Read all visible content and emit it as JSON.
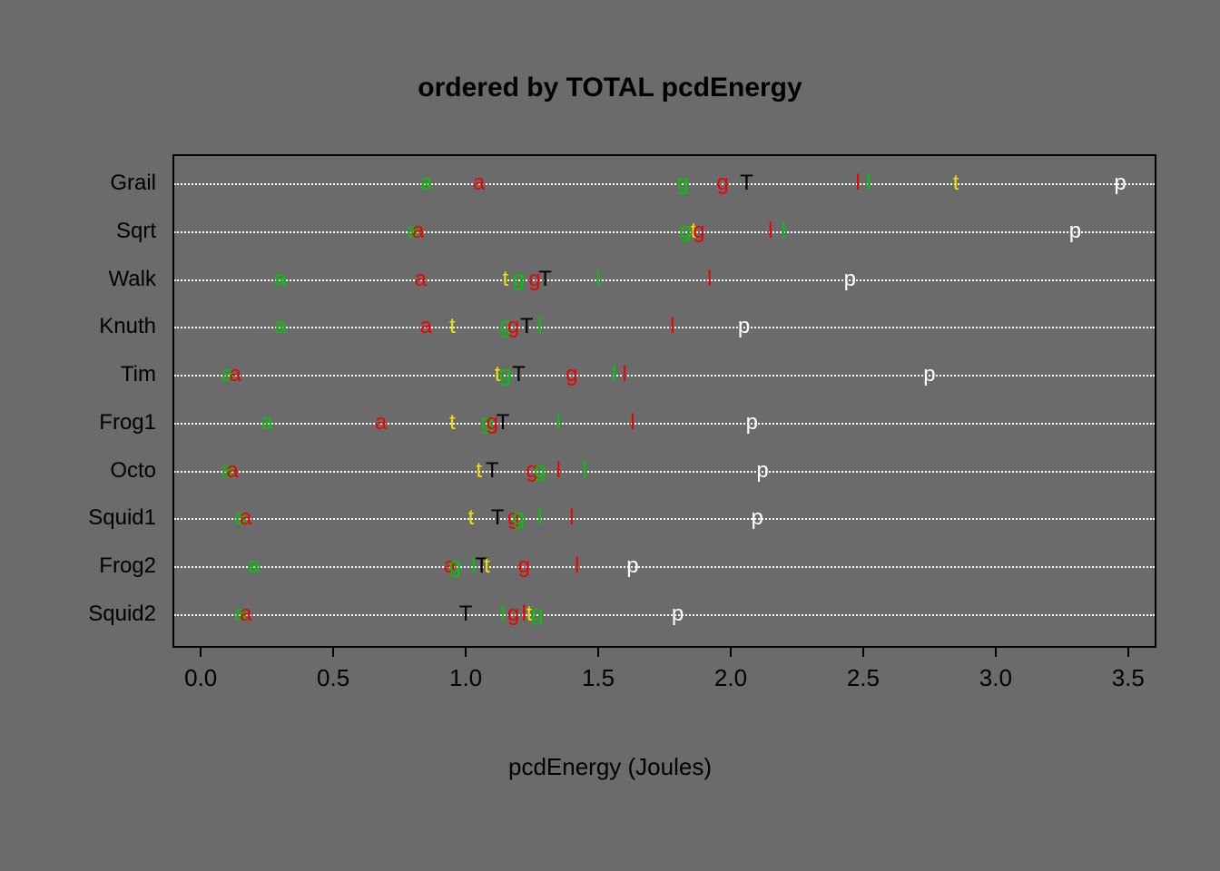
{
  "chart": {
    "type": "dotchart",
    "title": "ordered by TOTAL pcdEnergy",
    "title_fontsize": 30,
    "title_fontweight": "bold",
    "background_color": "#6b6b6b",
    "border_color": "#000000",
    "gridline_color": "#ffffff",
    "gridline_style": "dotted",
    "xlabel": "pcdEnergy (Joules)",
    "xlabel_fontsize": 26,
    "xlim": [
      -0.1,
      3.6
    ],
    "xticks": [
      0.0,
      0.5,
      1.0,
      1.5,
      2.0,
      2.5,
      3.0,
      3.5
    ],
    "xtick_fontsize": 26,
    "ylabel_fontsize": 24,
    "point_fontsize": 24,
    "categories": [
      "Grail",
      "Sqrt",
      "Walk",
      "Knuth",
      "Tim",
      "Frog1",
      "Octo",
      "Squid1",
      "Frog2",
      "Squid2"
    ],
    "colors": {
      "green": "#00c800",
      "red": "#f00000",
      "yellow": "#f0e000",
      "black": "#000000",
      "white": "#ffffff"
    },
    "points": {
      "Grail": [
        {
          "x": 0.85,
          "ch": "a",
          "color": "green"
        },
        {
          "x": 1.05,
          "ch": "a",
          "color": "red"
        },
        {
          "x": 1.82,
          "ch": "g",
          "color": "green"
        },
        {
          "x": 1.97,
          "ch": "g",
          "color": "red"
        },
        {
          "x": 2.06,
          "ch": "T",
          "color": "black"
        },
        {
          "x": 2.48,
          "ch": "l",
          "color": "red"
        },
        {
          "x": 2.52,
          "ch": "l",
          "color": "green"
        },
        {
          "x": 2.85,
          "ch": "t",
          "color": "yellow"
        },
        {
          "x": 3.47,
          "ch": "p",
          "color": "white"
        }
      ],
      "Sqrt": [
        {
          "x": 0.8,
          "ch": "a",
          "color": "green"
        },
        {
          "x": 0.82,
          "ch": "a",
          "color": "red"
        },
        {
          "x": 1.83,
          "ch": "g",
          "color": "green"
        },
        {
          "x": 1.86,
          "ch": "t",
          "color": "yellow"
        },
        {
          "x": 1.88,
          "ch": "g",
          "color": "red"
        },
        {
          "x": 2.15,
          "ch": "l",
          "color": "red"
        },
        {
          "x": 2.2,
          "ch": "l",
          "color": "green"
        },
        {
          "x": 3.3,
          "ch": "p",
          "color": "white"
        }
      ],
      "Walk": [
        {
          "x": 0.3,
          "ch": "a",
          "color": "green"
        },
        {
          "x": 0.83,
          "ch": "a",
          "color": "red"
        },
        {
          "x": 1.15,
          "ch": "t",
          "color": "yellow"
        },
        {
          "x": 1.2,
          "ch": "g",
          "color": "green"
        },
        {
          "x": 1.26,
          "ch": "g",
          "color": "red"
        },
        {
          "x": 1.3,
          "ch": "T",
          "color": "black"
        },
        {
          "x": 1.5,
          "ch": "l",
          "color": "green"
        },
        {
          "x": 1.92,
          "ch": "l",
          "color": "red"
        },
        {
          "x": 2.45,
          "ch": "p",
          "color": "white"
        }
      ],
      "Knuth": [
        {
          "x": 0.3,
          "ch": "a",
          "color": "green"
        },
        {
          "x": 0.85,
          "ch": "a",
          "color": "red"
        },
        {
          "x": 0.95,
          "ch": "t",
          "color": "yellow"
        },
        {
          "x": 1.15,
          "ch": "g",
          "color": "green"
        },
        {
          "x": 1.18,
          "ch": "g",
          "color": "red"
        },
        {
          "x": 1.23,
          "ch": "T",
          "color": "black"
        },
        {
          "x": 1.28,
          "ch": "l",
          "color": "green"
        },
        {
          "x": 1.78,
          "ch": "l",
          "color": "red"
        },
        {
          "x": 2.05,
          "ch": "p",
          "color": "white"
        }
      ],
      "Tim": [
        {
          "x": 0.1,
          "ch": "a",
          "color": "green"
        },
        {
          "x": 0.13,
          "ch": "a",
          "color": "red"
        },
        {
          "x": 1.12,
          "ch": "t",
          "color": "yellow"
        },
        {
          "x": 1.15,
          "ch": "g",
          "color": "green"
        },
        {
          "x": 1.2,
          "ch": "T",
          "color": "black"
        },
        {
          "x": 1.4,
          "ch": "g",
          "color": "red"
        },
        {
          "x": 1.56,
          "ch": "l",
          "color": "green"
        },
        {
          "x": 1.6,
          "ch": "l",
          "color": "red"
        },
        {
          "x": 2.75,
          "ch": "p",
          "color": "white"
        }
      ],
      "Frog1": [
        {
          "x": 0.25,
          "ch": "a",
          "color": "green"
        },
        {
          "x": 0.68,
          "ch": "a",
          "color": "red"
        },
        {
          "x": 0.95,
          "ch": "t",
          "color": "yellow"
        },
        {
          "x": 1.08,
          "ch": "g",
          "color": "green"
        },
        {
          "x": 1.1,
          "ch": "g",
          "color": "red"
        },
        {
          "x": 1.14,
          "ch": "T",
          "color": "black"
        },
        {
          "x": 1.35,
          "ch": "l",
          "color": "green"
        },
        {
          "x": 1.63,
          "ch": "l",
          "color": "red"
        },
        {
          "x": 2.08,
          "ch": "p",
          "color": "white"
        }
      ],
      "Octo": [
        {
          "x": 0.1,
          "ch": "a",
          "color": "green"
        },
        {
          "x": 0.12,
          "ch": "a",
          "color": "red"
        },
        {
          "x": 1.05,
          "ch": "t",
          "color": "yellow"
        },
        {
          "x": 1.1,
          "ch": "T",
          "color": "black"
        },
        {
          "x": 1.25,
          "ch": "g",
          "color": "red"
        },
        {
          "x": 1.28,
          "ch": "g",
          "color": "green"
        },
        {
          "x": 1.35,
          "ch": "l",
          "color": "red"
        },
        {
          "x": 1.45,
          "ch": "l",
          "color": "green"
        },
        {
          "x": 2.12,
          "ch": "p",
          "color": "white"
        }
      ],
      "Squid1": [
        {
          "x": 0.15,
          "ch": "a",
          "color": "green"
        },
        {
          "x": 0.17,
          "ch": "a",
          "color": "red"
        },
        {
          "x": 1.02,
          "ch": "t",
          "color": "yellow"
        },
        {
          "x": 1.12,
          "ch": "T",
          "color": "black"
        },
        {
          "x": 1.18,
          "ch": "g",
          "color": "red"
        },
        {
          "x": 1.2,
          "ch": "g",
          "color": "green"
        },
        {
          "x": 1.28,
          "ch": "l",
          "color": "green"
        },
        {
          "x": 1.4,
          "ch": "l",
          "color": "red"
        },
        {
          "x": 2.1,
          "ch": "p",
          "color": "white"
        }
      ],
      "Frog2": [
        {
          "x": 0.2,
          "ch": "a",
          "color": "green"
        },
        {
          "x": 0.94,
          "ch": "a",
          "color": "red"
        },
        {
          "x": 0.96,
          "ch": "g",
          "color": "green"
        },
        {
          "x": 1.03,
          "ch": "l",
          "color": "green"
        },
        {
          "x": 1.06,
          "ch": "T",
          "color": "black"
        },
        {
          "x": 1.08,
          "ch": "t",
          "color": "yellow"
        },
        {
          "x": 1.22,
          "ch": "g",
          "color": "red"
        },
        {
          "x": 1.42,
          "ch": "l",
          "color": "red"
        },
        {
          "x": 1.63,
          "ch": "p",
          "color": "white"
        }
      ],
      "Squid2": [
        {
          "x": 0.15,
          "ch": "a",
          "color": "green"
        },
        {
          "x": 0.17,
          "ch": "a",
          "color": "red"
        },
        {
          "x": 1.0,
          "ch": "T",
          "color": "black"
        },
        {
          "x": 1.14,
          "ch": "l",
          "color": "green"
        },
        {
          "x": 1.18,
          "ch": "g",
          "color": "red"
        },
        {
          "x": 1.22,
          "ch": "l",
          "color": "red"
        },
        {
          "x": 1.24,
          "ch": "t",
          "color": "yellow"
        },
        {
          "x": 1.27,
          "ch": "g",
          "color": "green"
        },
        {
          "x": 1.8,
          "ch": "p",
          "color": "white"
        }
      ]
    }
  }
}
